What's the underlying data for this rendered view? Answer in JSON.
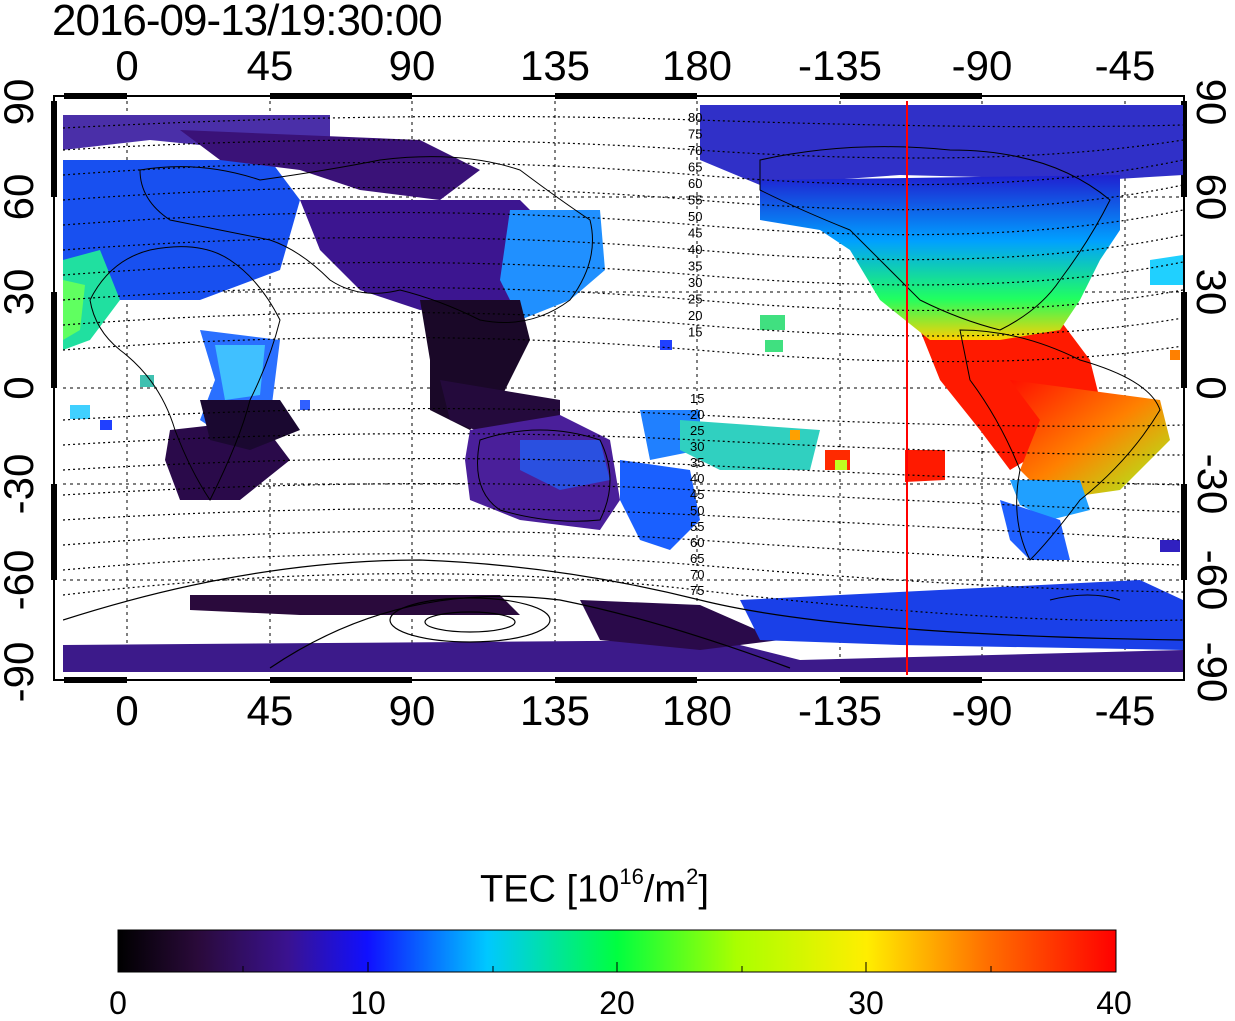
{
  "title": "2016-09-13/19:30:00",
  "x_ticks": [
    "0",
    "45",
    "90",
    "135",
    "180",
    "-135",
    "-90",
    "-45"
  ],
  "y_ticks": [
    "90",
    "60",
    "30",
    "0",
    "-30",
    "-60",
    "-90"
  ],
  "contour_labels_north": [
    "80",
    "75",
    "70",
    "65",
    "60",
    "55",
    "50",
    "45",
    "40",
    "35",
    "30",
    "25",
    "20",
    "15"
  ],
  "contour_labels_south": [
    "15",
    "20",
    "25",
    "30",
    "35",
    "40",
    "45",
    "50",
    "55",
    "60",
    "65",
    "70",
    "75"
  ],
  "colorbar": {
    "label_main": "TEC  [10",
    "label_exp": "16",
    "label_unit": "/m",
    "label_exp2": "2",
    "label_close": "]",
    "ticks": [
      "0",
      "10",
      "20",
      "30",
      "40"
    ],
    "range": [
      0,
      40
    ]
  },
  "terminator_longitude": -117,
  "colors": {
    "terminator": "#ff0000",
    "low": "#0a0008",
    "mid_low": "#3c0a7a",
    "mid": "#1a3cff",
    "mid_high": "#00e0ff",
    "high": "#ff1000"
  }
}
